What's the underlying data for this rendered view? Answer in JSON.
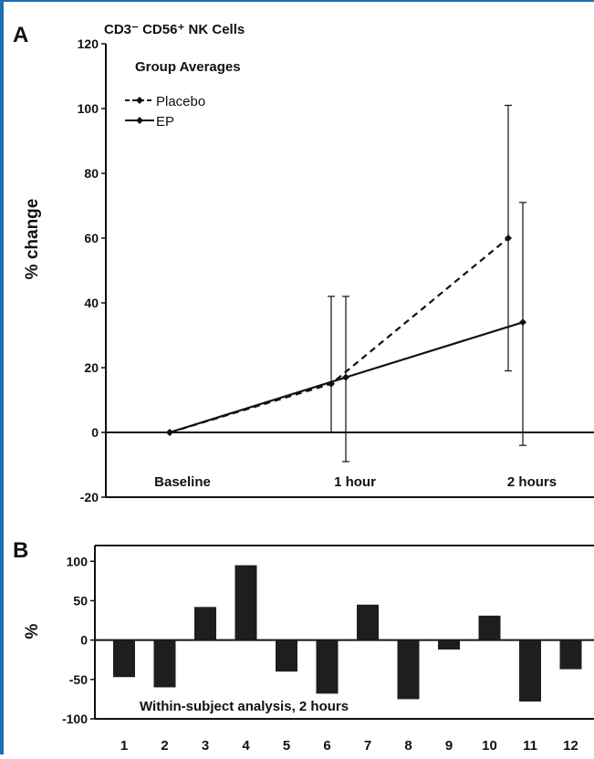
{
  "panel_a": {
    "label": "A",
    "title": "CD3⁻ CD56⁺ NK Cells",
    "ylabel": "% change",
    "legend_title": "Group Averages"
  },
  "panel_b": {
    "label": "B",
    "ylabel": "%",
    "annotation": "Within-subject analysis, 2 hours"
  },
  "colors": {
    "frame": "#1f6fb3",
    "ink": "#111111",
    "bar": "#1e1e1e"
  },
  "chart_data": [
    {
      "type": "line",
      "title": "CD3⁻ CD56⁺ NK Cells",
      "subtitle": "Group Averages",
      "xlabel": "",
      "ylabel": "% change",
      "ylim": [
        -20,
        120
      ],
      "yticks": [
        -20,
        0,
        20,
        40,
        60,
        80,
        100,
        120
      ],
      "categories": [
        "Baseline",
        "1 hour",
        "2 hours"
      ],
      "series": [
        {
          "name": "Placebo",
          "style": "dashed",
          "values": [
            0,
            15,
            60
          ],
          "err_low": [
            0,
            0,
            19
          ],
          "err_high": [
            0,
            42,
            101
          ]
        },
        {
          "name": "EP",
          "style": "solid",
          "values": [
            0,
            17,
            34
          ],
          "err_low": [
            0,
            -9,
            -4
          ],
          "err_high": [
            0,
            42,
            71
          ]
        }
      ],
      "legend": "top-left",
      "grid": false
    },
    {
      "type": "bar",
      "xlabel": "",
      "ylabel": "%",
      "ylim": [
        -100,
        120
      ],
      "yticks": [
        -100,
        -50,
        0,
        50,
        100
      ],
      "annotation": "Within-subject analysis, 2 hours",
      "categories": [
        "1",
        "2",
        "3",
        "4",
        "5",
        "6",
        "7",
        "8",
        "9",
        "10",
        "11",
        "12"
      ],
      "values": [
        -47,
        -60,
        42,
        95,
        -40,
        -68,
        45,
        -75,
        -12,
        31,
        -78,
        -37
      ],
      "grid": false
    }
  ]
}
